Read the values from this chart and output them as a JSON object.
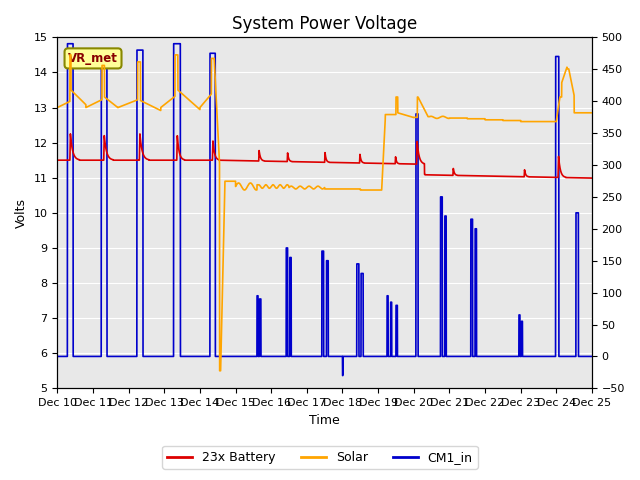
{
  "title": "System Power Voltage",
  "ylabel_left": "Volts",
  "xlabel": "Time",
  "ylim_left": [
    5.0,
    15.0
  ],
  "ylim_right": [
    -50,
    500
  ],
  "yticks_left": [
    5.0,
    6.0,
    7.0,
    8.0,
    9.0,
    10.0,
    11.0,
    12.0,
    13.0,
    14.0,
    15.0
  ],
  "yticks_right": [
    -50,
    0,
    50,
    100,
    150,
    200,
    250,
    300,
    350,
    400,
    450,
    500
  ],
  "xtick_labels": [
    "Dec 10",
    "Dec 11",
    "Dec 12",
    "Dec 13",
    "Dec 14",
    "Dec 15",
    "Dec 16",
    "Dec 17",
    "Dec 18",
    "Dec 19",
    "Dec 20",
    "Dec 21",
    "Dec 22",
    "Dec 23",
    "Dec 24",
    "Dec 25"
  ],
  "background_color": "#e8e8e8",
  "figure_bg": "#ffffff",
  "annotation_text": "VR_met",
  "annotation_bg": "#ffff99",
  "annotation_border": "#888800",
  "series": {
    "battery": {
      "label": "23x Battery",
      "color": "#dd0000",
      "linewidth": 1.2
    },
    "solar": {
      "label": "Solar",
      "color": "#ffa500",
      "linewidth": 1.2
    },
    "cm1": {
      "label": "CM1_in",
      "color": "#0000cc",
      "linewidth": 1.2
    }
  },
  "legend_ncol": 3,
  "title_fontsize": 12,
  "axis_fontsize": 9,
  "tick_fontsize": 8
}
